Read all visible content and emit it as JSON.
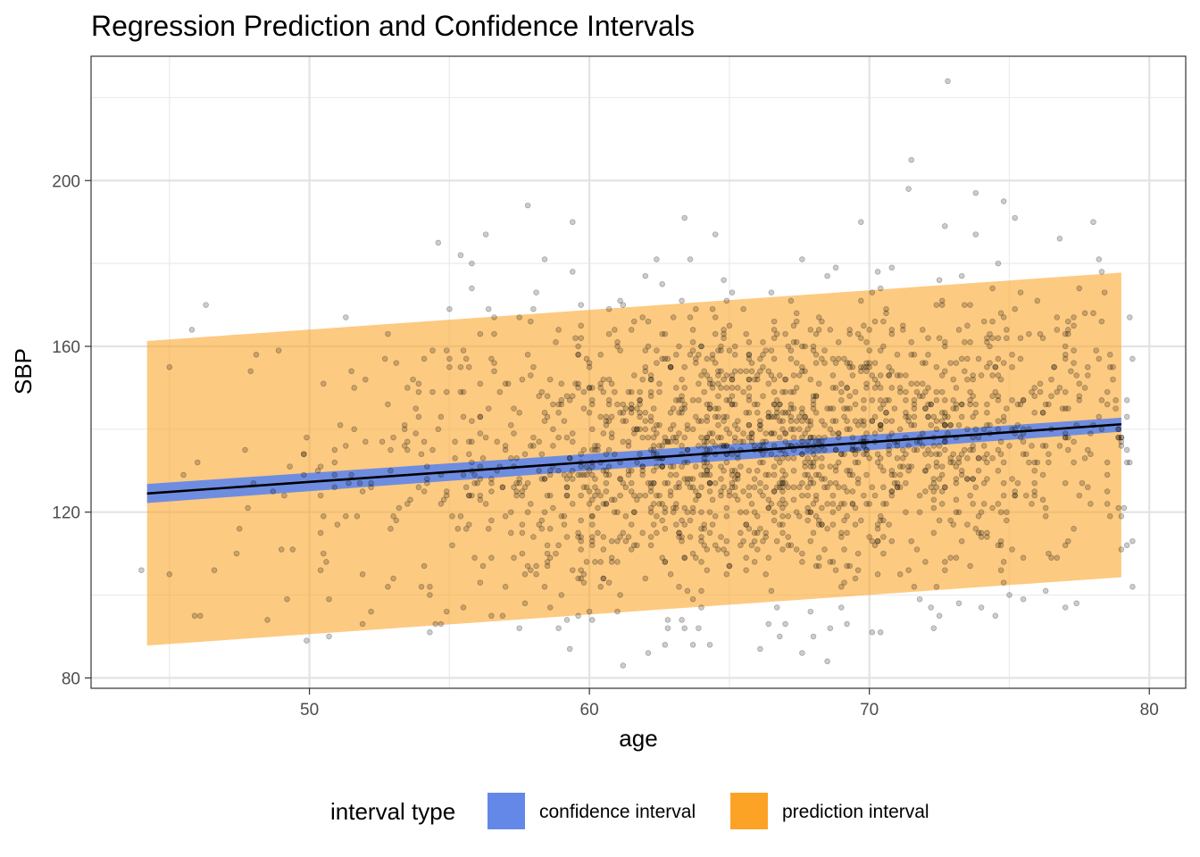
{
  "chart_data": {
    "type": "scatter",
    "title": "Regression Prediction and Confidence Intervals",
    "xlabel": "age",
    "ylabel": "SBP",
    "xlim": [
      42.2,
      81.3
    ],
    "ylim": [
      77.5,
      230
    ],
    "x_ticks": [
      50,
      60,
      70,
      80
    ],
    "x_minor": [
      45,
      55,
      65,
      75
    ],
    "y_ticks": [
      80,
      120,
      160,
      200
    ],
    "y_minor": [
      100,
      140,
      180,
      220
    ],
    "grid": true,
    "theme": "bw",
    "regression_line": {
      "x": [
        44.2,
        79.0
      ],
      "y": [
        124.5,
        141.2
      ],
      "color": "#000000"
    },
    "series": [
      {
        "name": "confidence interval",
        "kind": "band",
        "color": "#6388e8",
        "x": [
          44.2,
          79.0
        ],
        "lower": [
          122.2,
          139.4
        ],
        "upper": [
          126.8,
          142.8
        ]
      },
      {
        "name": "prediction interval",
        "kind": "band",
        "color": "#fca326",
        "x": [
          44.2,
          79.0
        ],
        "lower": [
          87.8,
          104.3
        ],
        "upper": [
          161.3,
          177.8
        ]
      }
    ],
    "points": {
      "count": 1900,
      "x_range": [
        44.0,
        79.4
      ],
      "point_color": "#000000",
      "outliers": [
        [
          44.0,
          106
        ],
        [
          45.0,
          155
        ],
        [
          45.0,
          105
        ],
        [
          45.8,
          164
        ],
        [
          45.9,
          95
        ],
        [
          46.3,
          170
        ],
        [
          46.6,
          106
        ],
        [
          47.8,
          121
        ],
        [
          48.5,
          94
        ],
        [
          49.2,
          99
        ],
        [
          49.9,
          89
        ],
        [
          50.7,
          99
        ],
        [
          54.6,
          185
        ],
        [
          55.4,
          182
        ],
        [
          56.3,
          187
        ],
        [
          57.8,
          194
        ],
        [
          59.4,
          190
        ],
        [
          57.5,
          92
        ],
        [
          58.9,
          92
        ],
        [
          61.2,
          83
        ],
        [
          63.3,
          94
        ],
        [
          64.5,
          187
        ],
        [
          66.1,
          87
        ],
        [
          66.8,
          90
        ],
        [
          68.0,
          90
        ],
        [
          69.0,
          97
        ],
        [
          69.7,
          190
        ],
        [
          71.5,
          205
        ],
        [
          72.8,
          224
        ],
        [
          72.5,
          95
        ],
        [
          73.2,
          98
        ],
        [
          73.8,
          197
        ],
        [
          75.0,
          100
        ],
        [
          75.5,
          99
        ],
        [
          76.3,
          101
        ],
        [
          78.0,
          190
        ],
        [
          79.4,
          102
        ],
        [
          79.4,
          157
        ],
        [
          79.3,
          167
        ],
        [
          79.2,
          112
        ],
        [
          77.4,
          98
        ],
        [
          76.8,
          186
        ],
        [
          71.4,
          198
        ],
        [
          74.8,
          195
        ],
        [
          75.2,
          191
        ]
      ]
    },
    "legend": {
      "title": "interval type",
      "position": "bottom",
      "items": [
        {
          "label": "confidence interval",
          "color": "#6388e8"
        },
        {
          "label": "prediction interval",
          "color": "#fca326"
        }
      ]
    }
  }
}
